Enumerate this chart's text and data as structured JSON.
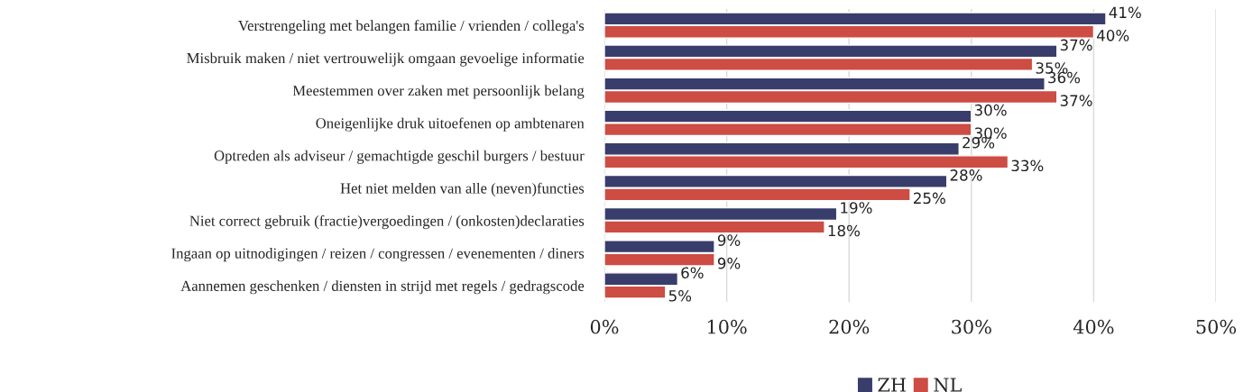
{
  "chart_data": {
    "type": "bar",
    "orientation": "horizontal",
    "categories": [
      "Verstrengeling met belangen familie / vrienden / collega's",
      "Misbruik maken / niet vertrouwelijk omgaan gevoelige informatie",
      "Meestemmen over zaken met persoonlijk belang",
      "Oneigenlijke druk uitoefenen op ambtenaren",
      "Optreden als adviseur / gemachtigde geschil burgers / bestuur",
      "Het niet melden van alle (neven)functies",
      "Niet correct gebruik (fractie)vergoedingen / (onkosten)declaraties",
      "Ingaan op uitnodigingen / reizen / congressen / evenementen / diners",
      "Aannemen geschenken / diensten in strijd met regels / gedragscode"
    ],
    "series": [
      {
        "name": "ZH",
        "color": "#393d6b",
        "values": [
          41,
          37,
          36,
          30,
          29,
          28,
          19,
          9,
          6
        ],
        "value_labels": [
          "41%",
          "37%",
          "36%",
          "30%",
          "29%",
          "28%",
          "19%",
          "9%",
          "6%"
        ]
      },
      {
        "name": "NL",
        "color": "#cd4c43",
        "values": [
          40,
          35,
          37,
          30,
          33,
          25,
          18,
          9,
          5
        ],
        "value_labels": [
          "40%",
          "35%",
          "37%",
          "30%",
          "33%",
          "25%",
          "18%",
          "9%",
          "5%"
        ]
      }
    ],
    "xlim": [
      0,
      50
    ],
    "xticks": [
      {
        "value": 0,
        "label": "0%"
      },
      {
        "value": 10,
        "label": "10%"
      },
      {
        "value": 20,
        "label": "20%"
      },
      {
        "value": 30,
        "label": "30%"
      },
      {
        "value": 40,
        "label": "40%"
      },
      {
        "value": 50,
        "label": "50%"
      }
    ],
    "grid": "x",
    "legend": "bottom"
  }
}
